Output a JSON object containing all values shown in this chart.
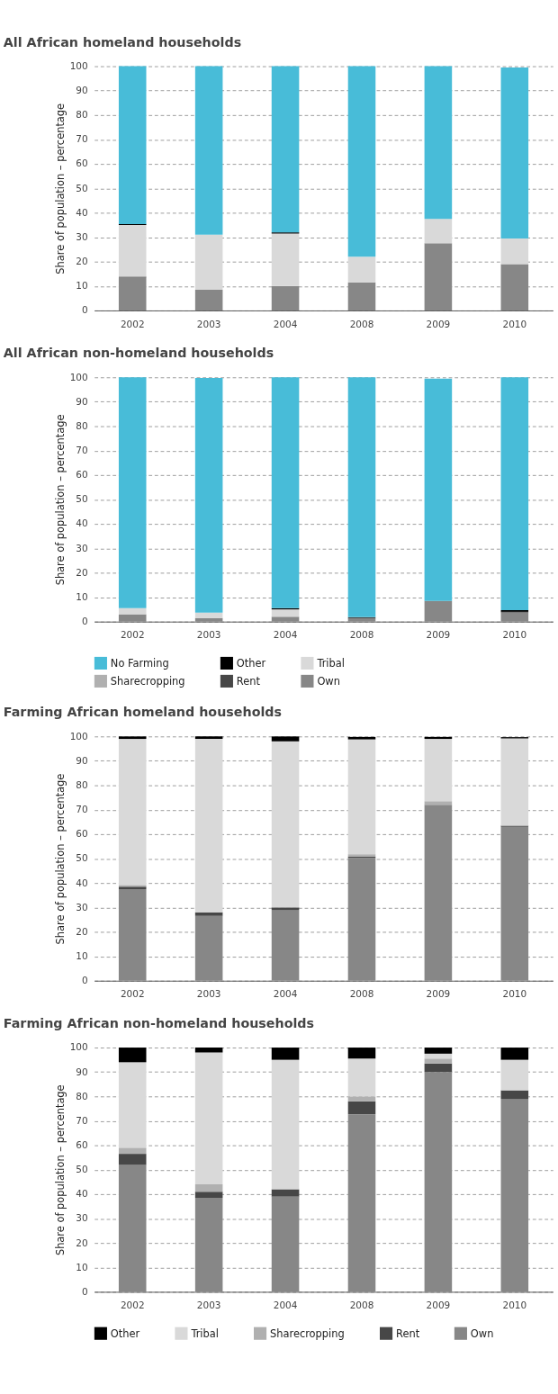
{
  "chart_data": [
    {
      "type": "bar",
      "title": "All African homeland households",
      "ylabel": "Share of population – percentage",
      "categories": [
        "2002",
        "2003",
        "2004",
        "2008",
        "2009",
        "2010"
      ],
      "stacked": true,
      "ylim": [
        0,
        100
      ],
      "yticks": [
        0,
        10,
        20,
        30,
        40,
        50,
        60,
        70,
        80,
        90,
        100
      ],
      "grid": "y",
      "legend": false,
      "series": [
        {
          "color": "#878787",
          "values": [
            13.5,
            8.5,
            10,
            11.5,
            27.5,
            19
          ]
        },
        {
          "color": "#474747",
          "values": [
            0.3,
            0,
            0,
            0,
            0,
            0
          ]
        },
        {
          "color": "#b0b0b0",
          "values": [
            0.2,
            0,
            0,
            0,
            0,
            0
          ]
        },
        {
          "color": "#d9d9d9",
          "values": [
            21,
            22.5,
            21.5,
            10.5,
            10,
            10.5
          ]
        },
        {
          "color": "#000000",
          "values": [
            0.4,
            0,
            0.5,
            0,
            0,
            0
          ]
        },
        {
          "color": "#48bcd8",
          "values": [
            64.6,
            69,
            68,
            78,
            62.5,
            70
          ]
        }
      ]
    },
    {
      "type": "bar",
      "title": "All African non-homeland households",
      "ylabel": "Share of population – percentage",
      "categories": [
        "2002",
        "2003",
        "2004",
        "2008",
        "2009",
        "2010"
      ],
      "stacked": true,
      "ylim": [
        0,
        100
      ],
      "yticks": [
        0,
        10,
        20,
        30,
        40,
        50,
        60,
        70,
        80,
        90,
        100
      ],
      "grid": "y",
      "legend": "bottom",
      "series": [
        {
          "name": "Own",
          "color": "#878787",
          "values": [
            3,
            1.5,
            2,
            1.2,
            8.5,
            3.7
          ]
        },
        {
          "name": "Rent",
          "color": "#474747",
          "values": [
            0,
            0,
            0,
            0.6,
            0,
            0.3
          ]
        },
        {
          "name": "Sharecropping",
          "color": "#b0b0b0",
          "values": [
            0,
            null,
            0,
            0,
            null,
            0
          ]
        },
        {
          "name": "Tribal",
          "color": "#d9d9d9",
          "values": [
            2.5,
            2.2,
            3,
            0,
            0,
            0
          ]
        },
        {
          "name": "Other",
          "color": "#000000",
          "values": [
            0,
            0,
            0.5,
            0,
            0,
            0.7
          ]
        },
        {
          "name": "No Farming",
          "color": "#48bcd8",
          "values": [
            94.5,
            96,
            94.5,
            98.2,
            91,
            95.3
          ]
        }
      ]
    },
    {
      "type": "bar",
      "title": "Farming African homeland households",
      "ylabel": "Share of population – percentage",
      "categories": [
        "2002",
        "2003",
        "2004",
        "2008",
        "2009",
        "2010"
      ],
      "stacked": true,
      "ylim": [
        0,
        100
      ],
      "yticks": [
        0,
        10,
        20,
        30,
        40,
        50,
        60,
        70,
        80,
        90,
        100
      ],
      "grid": "y",
      "legend": false,
      "series": [
        {
          "color": "#878787",
          "values": [
            37.5,
            26.5,
            29,
            50.3,
            72,
            63
          ]
        },
        {
          "color": "#474747",
          "values": [
            1,
            1.5,
            1,
            0.5,
            0,
            0.5
          ]
        },
        {
          "color": "#b0b0b0",
          "values": [
            0.7,
            0,
            0,
            1,
            1.5,
            null
          ]
        },
        {
          "color": "#d9d9d9",
          "values": [
            59.8,
            71,
            68,
            47,
            25.5,
            35.7
          ]
        },
        {
          "color": "#000000",
          "values": [
            1,
            1,
            2,
            1,
            0.8,
            0.5
          ]
        }
      ]
    },
    {
      "type": "bar",
      "title": "Farming African non-homeland households",
      "ylabel": "Share of population – percentage",
      "categories": [
        "2002",
        "2003",
        "2004",
        "2008",
        "2009",
        "2010"
      ],
      "stacked": true,
      "ylim": [
        0,
        100
      ],
      "yticks": [
        0,
        10,
        20,
        30,
        40,
        50,
        60,
        70,
        80,
        90,
        100
      ],
      "grid": "y",
      "legend": "bottom",
      "series": [
        {
          "name": "Own",
          "color": "#878787",
          "values": [
            52,
            38.5,
            39,
            72.7,
            90,
            79
          ]
        },
        {
          "name": "Rent",
          "color": "#474747",
          "values": [
            4.5,
            2.5,
            3,
            5.3,
            3.5,
            3.5
          ]
        },
        {
          "name": "Sharecropping",
          "color": "#b0b0b0",
          "values": [
            2.5,
            3,
            0,
            2,
            2,
            0
          ]
        },
        {
          "name": "Tribal",
          "color": "#d9d9d9",
          "values": [
            35,
            54,
            53,
            15.5,
            2,
            12.5
          ]
        },
        {
          "name": "Other",
          "color": "#000000",
          "values": [
            6,
            2,
            5,
            4.5,
            2.5,
            5
          ]
        }
      ]
    }
  ]
}
